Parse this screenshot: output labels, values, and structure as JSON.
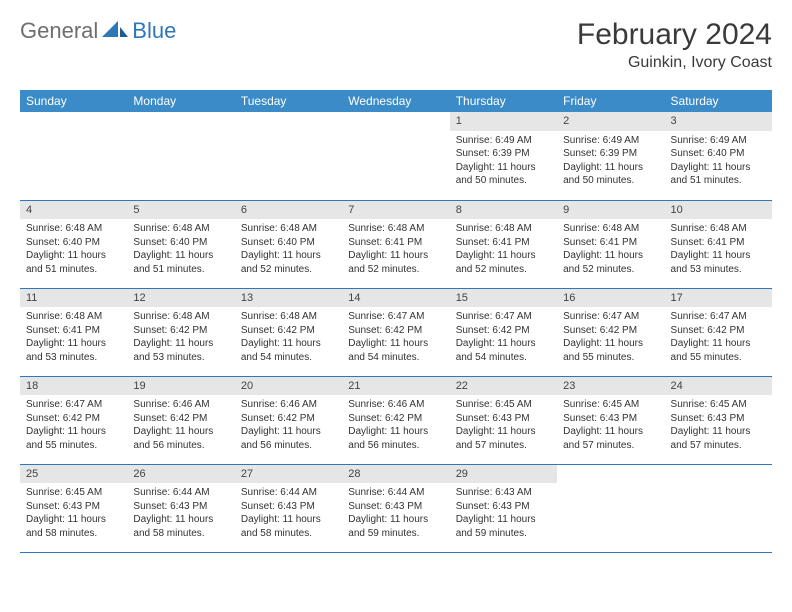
{
  "brand": {
    "part1": "General",
    "part2": "Blue"
  },
  "title": "February 2024",
  "location": "Guinkin, Ivory Coast",
  "colors": {
    "header_bg": "#3b8bc8",
    "header_text": "#ffffff",
    "daynum_bg": "#e6e6e6",
    "border": "#2f78b7",
    "text": "#333333",
    "brand_gray": "#6e6e6e",
    "brand_blue": "#2f78b7",
    "page_bg": "#ffffff"
  },
  "day_headers": [
    "Sunday",
    "Monday",
    "Tuesday",
    "Wednesday",
    "Thursday",
    "Friday",
    "Saturday"
  ],
  "weeks": [
    [
      {
        "n": "",
        "sunrise": "",
        "sunset": "",
        "daylight": ""
      },
      {
        "n": "",
        "sunrise": "",
        "sunset": "",
        "daylight": ""
      },
      {
        "n": "",
        "sunrise": "",
        "sunset": "",
        "daylight": ""
      },
      {
        "n": "",
        "sunrise": "",
        "sunset": "",
        "daylight": ""
      },
      {
        "n": "1",
        "sunrise": "Sunrise: 6:49 AM",
        "sunset": "Sunset: 6:39 PM",
        "daylight": "Daylight: 11 hours and 50 minutes."
      },
      {
        "n": "2",
        "sunrise": "Sunrise: 6:49 AM",
        "sunset": "Sunset: 6:39 PM",
        "daylight": "Daylight: 11 hours and 50 minutes."
      },
      {
        "n": "3",
        "sunrise": "Sunrise: 6:49 AM",
        "sunset": "Sunset: 6:40 PM",
        "daylight": "Daylight: 11 hours and 51 minutes."
      }
    ],
    [
      {
        "n": "4",
        "sunrise": "Sunrise: 6:48 AM",
        "sunset": "Sunset: 6:40 PM",
        "daylight": "Daylight: 11 hours and 51 minutes."
      },
      {
        "n": "5",
        "sunrise": "Sunrise: 6:48 AM",
        "sunset": "Sunset: 6:40 PM",
        "daylight": "Daylight: 11 hours and 51 minutes."
      },
      {
        "n": "6",
        "sunrise": "Sunrise: 6:48 AM",
        "sunset": "Sunset: 6:40 PM",
        "daylight": "Daylight: 11 hours and 52 minutes."
      },
      {
        "n": "7",
        "sunrise": "Sunrise: 6:48 AM",
        "sunset": "Sunset: 6:41 PM",
        "daylight": "Daylight: 11 hours and 52 minutes."
      },
      {
        "n": "8",
        "sunrise": "Sunrise: 6:48 AM",
        "sunset": "Sunset: 6:41 PM",
        "daylight": "Daylight: 11 hours and 52 minutes."
      },
      {
        "n": "9",
        "sunrise": "Sunrise: 6:48 AM",
        "sunset": "Sunset: 6:41 PM",
        "daylight": "Daylight: 11 hours and 52 minutes."
      },
      {
        "n": "10",
        "sunrise": "Sunrise: 6:48 AM",
        "sunset": "Sunset: 6:41 PM",
        "daylight": "Daylight: 11 hours and 53 minutes."
      }
    ],
    [
      {
        "n": "11",
        "sunrise": "Sunrise: 6:48 AM",
        "sunset": "Sunset: 6:41 PM",
        "daylight": "Daylight: 11 hours and 53 minutes."
      },
      {
        "n": "12",
        "sunrise": "Sunrise: 6:48 AM",
        "sunset": "Sunset: 6:42 PM",
        "daylight": "Daylight: 11 hours and 53 minutes."
      },
      {
        "n": "13",
        "sunrise": "Sunrise: 6:48 AM",
        "sunset": "Sunset: 6:42 PM",
        "daylight": "Daylight: 11 hours and 54 minutes."
      },
      {
        "n": "14",
        "sunrise": "Sunrise: 6:47 AM",
        "sunset": "Sunset: 6:42 PM",
        "daylight": "Daylight: 11 hours and 54 minutes."
      },
      {
        "n": "15",
        "sunrise": "Sunrise: 6:47 AM",
        "sunset": "Sunset: 6:42 PM",
        "daylight": "Daylight: 11 hours and 54 minutes."
      },
      {
        "n": "16",
        "sunrise": "Sunrise: 6:47 AM",
        "sunset": "Sunset: 6:42 PM",
        "daylight": "Daylight: 11 hours and 55 minutes."
      },
      {
        "n": "17",
        "sunrise": "Sunrise: 6:47 AM",
        "sunset": "Sunset: 6:42 PM",
        "daylight": "Daylight: 11 hours and 55 minutes."
      }
    ],
    [
      {
        "n": "18",
        "sunrise": "Sunrise: 6:47 AM",
        "sunset": "Sunset: 6:42 PM",
        "daylight": "Daylight: 11 hours and 55 minutes."
      },
      {
        "n": "19",
        "sunrise": "Sunrise: 6:46 AM",
        "sunset": "Sunset: 6:42 PM",
        "daylight": "Daylight: 11 hours and 56 minutes."
      },
      {
        "n": "20",
        "sunrise": "Sunrise: 6:46 AM",
        "sunset": "Sunset: 6:42 PM",
        "daylight": "Daylight: 11 hours and 56 minutes."
      },
      {
        "n": "21",
        "sunrise": "Sunrise: 6:46 AM",
        "sunset": "Sunset: 6:42 PM",
        "daylight": "Daylight: 11 hours and 56 minutes."
      },
      {
        "n": "22",
        "sunrise": "Sunrise: 6:45 AM",
        "sunset": "Sunset: 6:43 PM",
        "daylight": "Daylight: 11 hours and 57 minutes."
      },
      {
        "n": "23",
        "sunrise": "Sunrise: 6:45 AM",
        "sunset": "Sunset: 6:43 PM",
        "daylight": "Daylight: 11 hours and 57 minutes."
      },
      {
        "n": "24",
        "sunrise": "Sunrise: 6:45 AM",
        "sunset": "Sunset: 6:43 PM",
        "daylight": "Daylight: 11 hours and 57 minutes."
      }
    ],
    [
      {
        "n": "25",
        "sunrise": "Sunrise: 6:45 AM",
        "sunset": "Sunset: 6:43 PM",
        "daylight": "Daylight: 11 hours and 58 minutes."
      },
      {
        "n": "26",
        "sunrise": "Sunrise: 6:44 AM",
        "sunset": "Sunset: 6:43 PM",
        "daylight": "Daylight: 11 hours and 58 minutes."
      },
      {
        "n": "27",
        "sunrise": "Sunrise: 6:44 AM",
        "sunset": "Sunset: 6:43 PM",
        "daylight": "Daylight: 11 hours and 58 minutes."
      },
      {
        "n": "28",
        "sunrise": "Sunrise: 6:44 AM",
        "sunset": "Sunset: 6:43 PM",
        "daylight": "Daylight: 11 hours and 59 minutes."
      },
      {
        "n": "29",
        "sunrise": "Sunrise: 6:43 AM",
        "sunset": "Sunset: 6:43 PM",
        "daylight": "Daylight: 11 hours and 59 minutes."
      },
      {
        "n": "",
        "sunrise": "",
        "sunset": "",
        "daylight": ""
      },
      {
        "n": "",
        "sunrise": "",
        "sunset": "",
        "daylight": ""
      }
    ]
  ]
}
